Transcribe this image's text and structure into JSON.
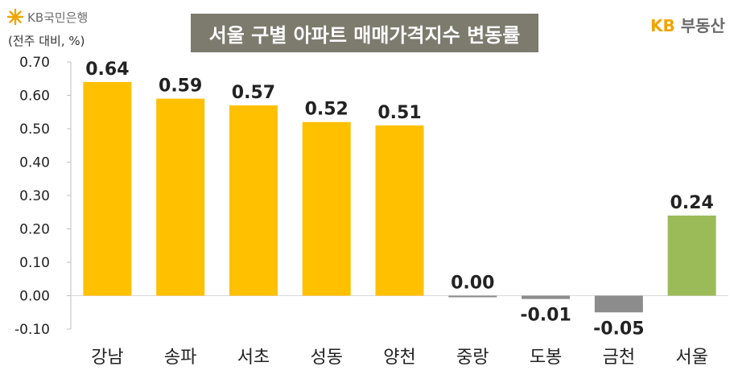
{
  "header": {
    "bank_logo_text": "KB국민은행",
    "unit_label": "(전주 대비, %)",
    "title": "서울 구별 아파트 매매가격지수 변동률",
    "brand_kb": "KB",
    "brand_name": "부동산"
  },
  "colors": {
    "accent": "#FFC000",
    "seoul": "#9BBB59",
    "negative": "#8C8C8C",
    "title_bg": "#7D7A6E"
  },
  "chart_data": {
    "type": "bar",
    "title": "서울 구별 아파트 매매가격지수 변동률",
    "ylabel": "(전주 대비, %)",
    "categories": [
      "강남",
      "송파",
      "서초",
      "성동",
      "양천",
      "중랑",
      "도봉",
      "금천",
      "서울"
    ],
    "values": [
      0.64,
      0.59,
      0.57,
      0.52,
      0.51,
      0.0,
      -0.01,
      -0.05,
      0.24
    ],
    "value_labels": [
      "0.64",
      "0.59",
      "0.57",
      "0.52",
      "0.51",
      "0.00",
      "-0.01",
      "-0.05",
      "0.24"
    ],
    "bar_colors": [
      "#FFC000",
      "#FFC000",
      "#FFC000",
      "#FFC000",
      "#FFC000",
      "#8C8C8C",
      "#8C8C8C",
      "#8C8C8C",
      "#9BBB59"
    ],
    "yticks": [
      "0.70",
      "0.60",
      "0.50",
      "0.40",
      "0.30",
      "0.20",
      "0.10",
      "0.00",
      "-0.10"
    ],
    "ylim": [
      -0.1,
      0.7
    ],
    "grid": false,
    "legend": "none"
  }
}
